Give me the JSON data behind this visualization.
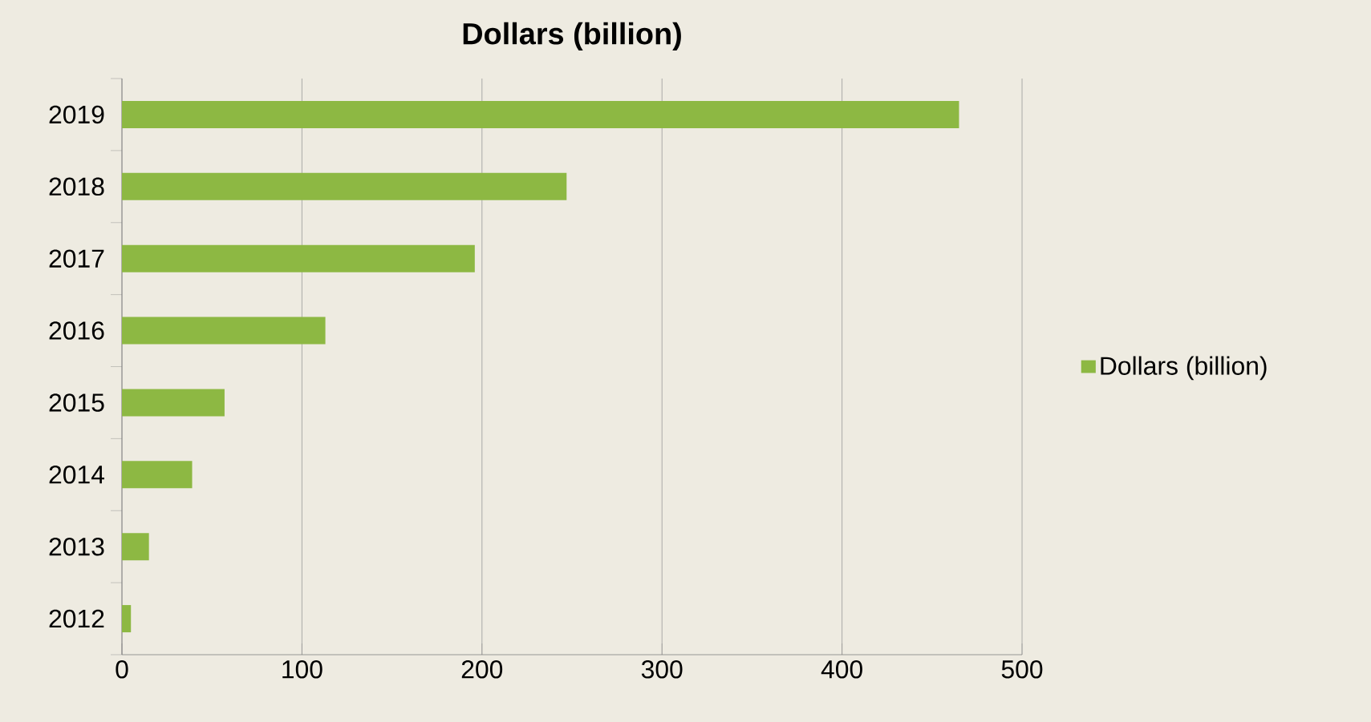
{
  "chart_data": {
    "type": "bar",
    "orientation": "horizontal",
    "title": "Dollars (billion)",
    "categories": [
      "2019",
      "2018",
      "2017",
      "2016",
      "2015",
      "2014",
      "2013",
      "2012"
    ],
    "series": [
      {
        "name": "Dollars (billion)",
        "color": "#8db843",
        "values": [
          465,
          247,
          196,
          113,
          57,
          39,
          15,
          5
        ]
      }
    ],
    "xlim": [
      0,
      500
    ],
    "xticks": [
      0,
      100,
      200,
      300,
      400,
      500
    ],
    "grid": "x",
    "legend": "right"
  }
}
